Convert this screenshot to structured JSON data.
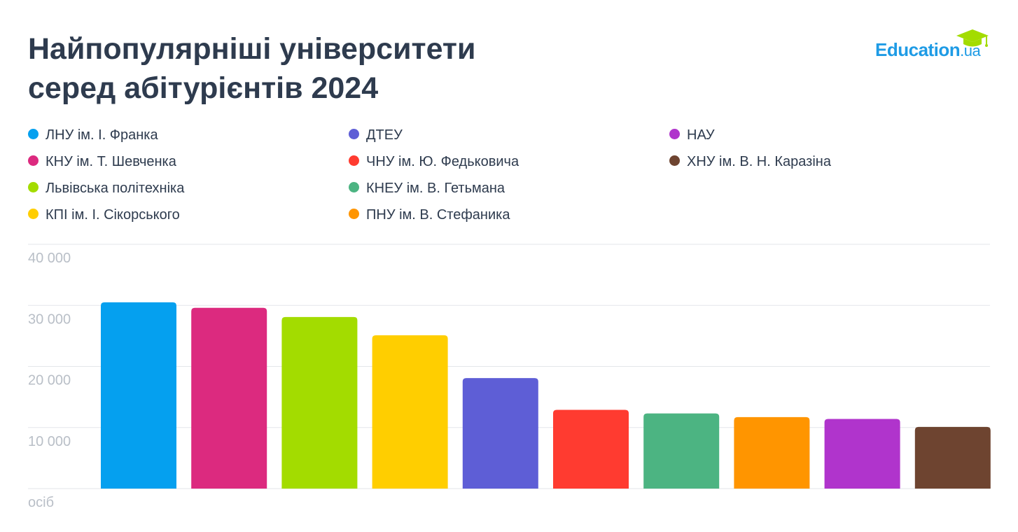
{
  "header": {
    "title_line1": "Найпопулярніші університети",
    "title_line2": "серед абітурієнтів 2024"
  },
  "logo": {
    "main": "Education",
    "suffix": ".ua",
    "icon": "graduation-cap-icon",
    "color": "#1e9be5"
  },
  "chart_data": {
    "type": "bar",
    "categories": [
      "ЛНУ ім. І. Франка",
      "КНУ ім. Т. Шевченка",
      "Львівська політехніка",
      "КПІ ім. І. Сікорського",
      "ДТЕУ",
      "ЧНУ ім. Ю. Федьковича",
      "КНЕУ ім. В. Гетьмана",
      "ПНУ ім. В. Стефаника",
      "НАУ",
      "ХНУ ім. В. Н. Каразіна"
    ],
    "values": [
      30500,
      29600,
      28100,
      25100,
      18100,
      12900,
      12300,
      11700,
      11400,
      10100
    ],
    "colors": [
      "#05a0ef",
      "#dc2a7f",
      "#a3dc00",
      "#ffce00",
      "#5e5ed6",
      "#ff3b30",
      "#4cb482",
      "#ff9500",
      "#b034cc",
      "#6e4430"
    ],
    "legend": [
      "ЛНУ ім. І. Франка",
      "КНУ ім. Т. Шевченка",
      "Львівська політехніка",
      "КПІ ім. І. Сікорського",
      "ДТЕУ",
      "ЧНУ ім. Ю. Федьковича",
      "КНЕУ ім. В. Гетьмана",
      "ПНУ ім. В. Стефаника",
      "НАУ",
      "ХНУ ім. В. Н. Каразіна"
    ],
    "legend_placement": "top",
    "ylim": [
      0,
      40000
    ],
    "yticks": [
      10000,
      20000,
      30000,
      40000
    ],
    "ytick_labels": [
      "10 000",
      "20 000",
      "30 000",
      "40 000"
    ],
    "ylabel": "осіб",
    "grid": true
  }
}
